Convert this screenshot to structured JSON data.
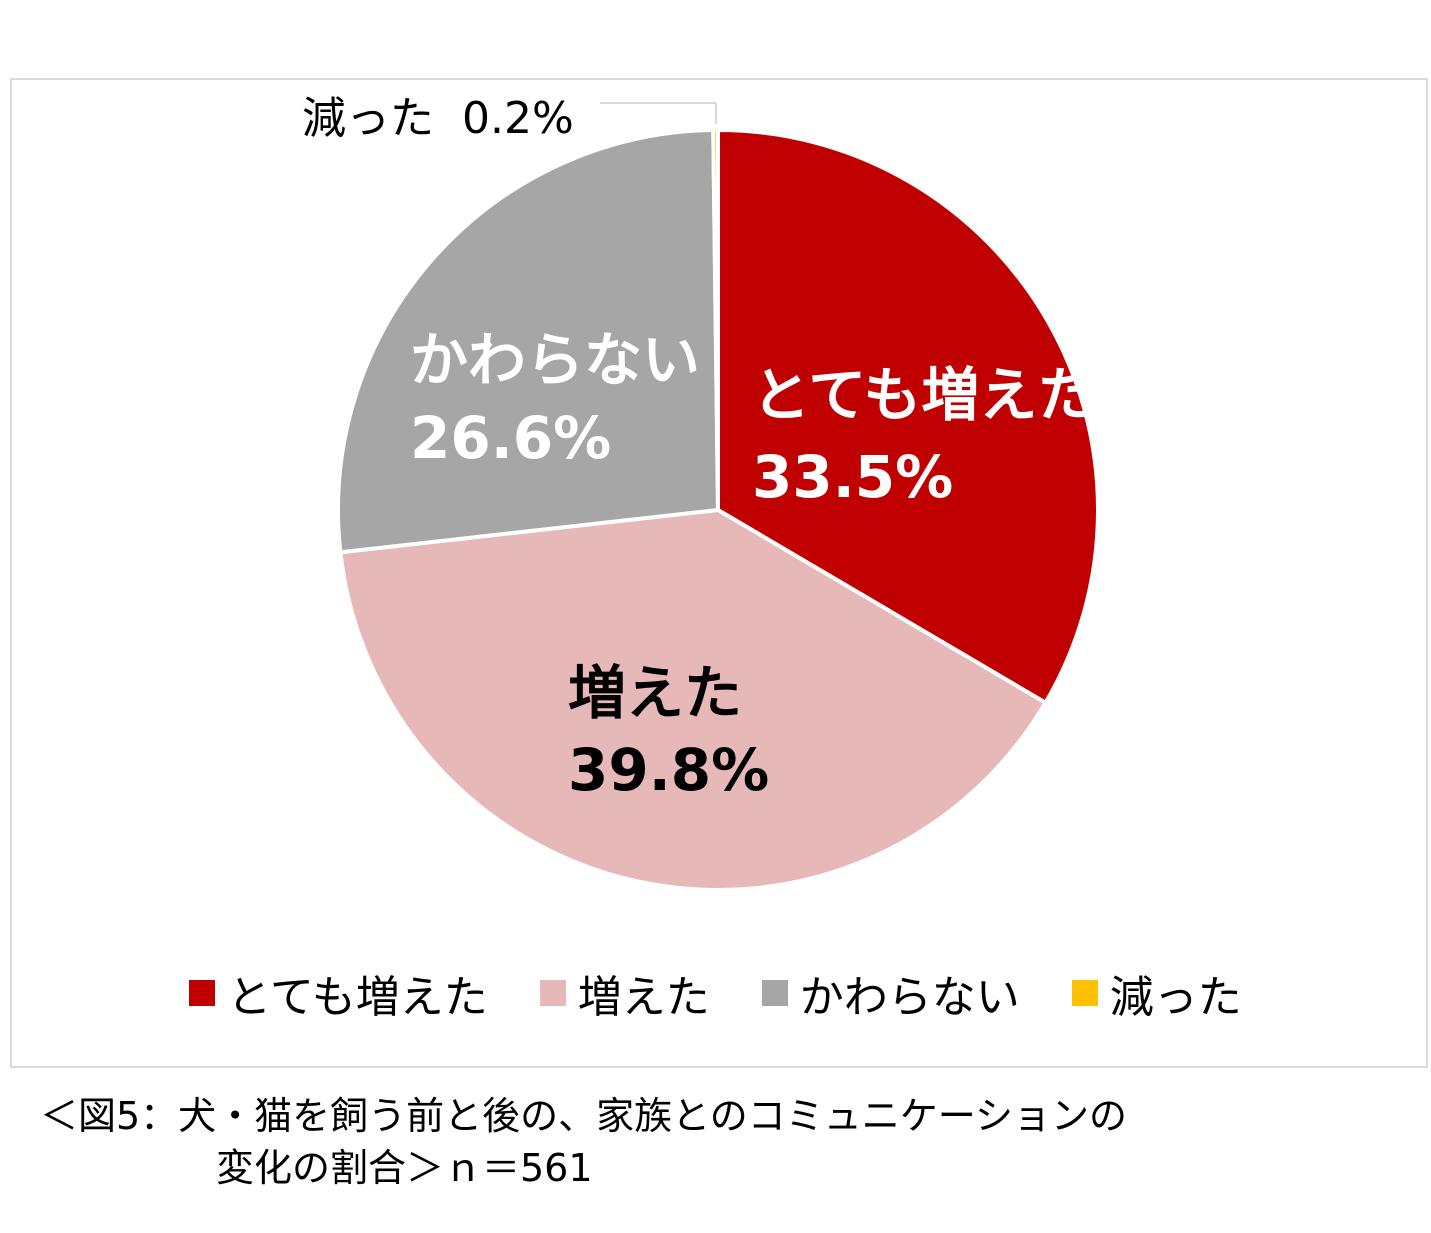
{
  "chart_data": {
    "type": "pie",
    "start_angle_deg": 0,
    "direction": "clockwise",
    "slices": [
      {
        "name": "とても増えた",
        "value": 33.5,
        "label": "33.5%",
        "color": "#c00000",
        "label_color": "#ffffff"
      },
      {
        "name": "増えた",
        "value": 39.8,
        "label": "39.8%",
        "color": "#e6b9b8",
        "label_color": "#000000"
      },
      {
        "name": "かわらない",
        "value": 26.6,
        "label": "26.6%",
        "color": "#a6a6a6",
        "label_color": "#ffffff"
      },
      {
        "name": "減った",
        "value": 0.2,
        "label": "0.2%",
        "color": "#ffc000",
        "label_color": "#000000"
      }
    ],
    "legend": {
      "placement": "bottom",
      "items": [
        "とても増えた",
        "増えた",
        "かわらない",
        "減った"
      ]
    }
  },
  "caption": {
    "line1": "＜図5：犬・猫を飼う前と後の、家族とのコミュニケーションの",
    "line2": "変化の割合＞ｎ＝561"
  }
}
